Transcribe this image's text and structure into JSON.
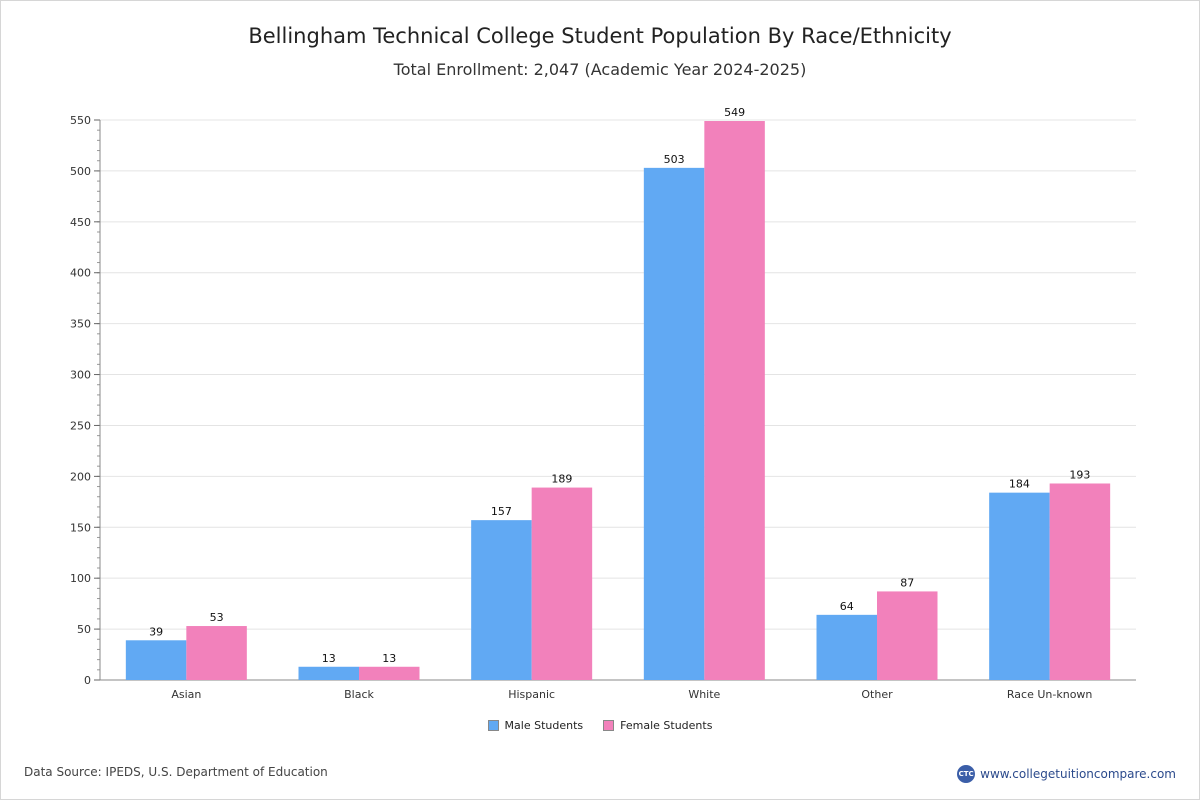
{
  "header": {
    "title": "Bellingham Technical College Student Population By Race/Ethnicity",
    "subtitle": "Total Enrollment: 2,047 (Academic Year 2024-2025)"
  },
  "footer": {
    "source": "Data Source: IPEDS, U.S. Department of Education",
    "site": "www.collegetuitioncompare.com",
    "logo_text": "CTC"
  },
  "chart_data": {
    "type": "bar",
    "title": "Bellingham Technical College Student Population By Race/Ethnicity",
    "subtitle": "Total Enrollment: 2,047 (Academic Year 2024-2025)",
    "categories": [
      "Asian",
      "Black",
      "Hispanic",
      "White",
      "Other",
      "Race Un-known"
    ],
    "series": [
      {
        "name": "Male Students",
        "values": [
          39,
          13,
          157,
          503,
          64,
          184
        ],
        "color": "#61a9f3"
      },
      {
        "name": "Female Students",
        "values": [
          53,
          13,
          189,
          549,
          87,
          193
        ],
        "color": "#f281bb"
      }
    ],
    "ylim": [
      0,
      550
    ],
    "yticks": [
      0,
      50,
      100,
      150,
      200,
      250,
      300,
      350,
      400,
      450,
      500,
      550
    ],
    "grid": true,
    "legend_position": "bottom-center",
    "xlabel": "",
    "ylabel": ""
  }
}
